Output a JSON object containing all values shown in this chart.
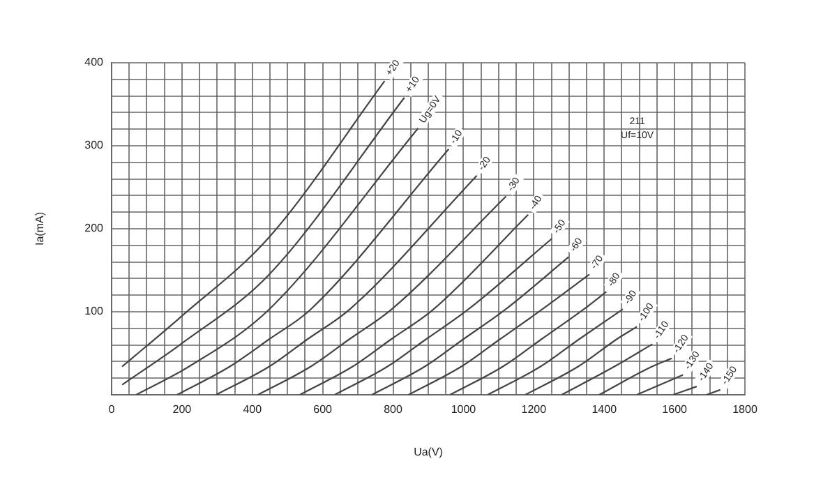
{
  "chart_data": {
    "type": "line",
    "xlabel": "Ua(V)",
    "ylabel": "Ia(mA)",
    "annotations": [
      "211",
      "Uf=10V"
    ],
    "xlim": [
      0,
      1800
    ],
    "ylim": [
      0,
      400
    ],
    "xticks": [
      0,
      {
        "value": 50,
        "label": null
      },
      {
        "value": 100,
        "label": null
      },
      {
        "value": 150,
        "label": null
      },
      200,
      {
        "value": 250,
        "label": null
      },
      {
        "value": 300,
        "label": null
      },
      {
        "value": 350,
        "label": null
      },
      400,
      {
        "value": 450,
        "label": null
      },
      {
        "value": 500,
        "label": null
      },
      {
        "value": 550,
        "label": null
      },
      600,
      {
        "value": 650,
        "label": null
      },
      {
        "value": 700,
        "label": null
      },
      {
        "value": 750,
        "label": null
      },
      800,
      {
        "value": 850,
        "label": null
      },
      {
        "value": 900,
        "label": null
      },
      {
        "value": 950,
        "label": null
      },
      1000,
      {
        "value": 1050,
        "label": null
      },
      {
        "value": 1100,
        "label": null
      },
      {
        "value": 1150,
        "label": null
      },
      1200,
      {
        "value": 1250,
        "label": null
      },
      {
        "value": 1300,
        "label": null
      },
      {
        "value": 1350,
        "label": null
      },
      1400,
      {
        "value": 1450,
        "label": null
      },
      {
        "value": 1500,
        "label": null
      },
      {
        "value": 1550,
        "label": null
      },
      1600,
      {
        "value": 1650,
        "label": null
      },
      {
        "value": 1700,
        "label": null
      },
      {
        "value": 1750,
        "label": null
      },
      1800
    ],
    "yticks": [
      {
        "value": 0,
        "label": null
      },
      {
        "value": 20,
        "label": null
      },
      {
        "value": 40,
        "label": null
      },
      {
        "value": 60,
        "label": null
      },
      {
        "value": 80,
        "label": null
      },
      100,
      {
        "value": 120,
        "label": null
      },
      {
        "value": 140,
        "label": null
      },
      {
        "value": 160,
        "label": null
      },
      {
        "value": 180,
        "label": null
      },
      200,
      {
        "value": 220,
        "label": null
      },
      {
        "value": 240,
        "label": null
      },
      {
        "value": 260,
        "label": null
      },
      {
        "value": 280,
        "label": null
      },
      300,
      {
        "value": 320,
        "label": null
      },
      {
        "value": 340,
        "label": null
      },
      {
        "value": 360,
        "label": null
      },
      {
        "value": 380,
        "label": null
      },
      400
    ],
    "grid": true,
    "legend": false,
    "marker": "none",
    "line_style": "solid",
    "series": [
      {
        "name": "+20",
        "color": "#444444",
        "x": [
          30,
          200,
          448,
          776
        ],
        "values": [
          34,
          95,
          190,
          378
        ]
      },
      {
        "name": "+10",
        "color": "#444444",
        "x": [
          30,
          200,
          448,
          832
        ],
        "values": [
          12,
          62,
          145,
          358
        ]
      },
      {
        "name": "Ug=0V",
        "color": "#444444",
        "x": [
          70,
          220,
          448,
          871
        ],
        "values": [
          0,
          34,
          103,
          321
        ]
      },
      {
        "name": "-10",
        "color": "#444444",
        "x": [
          186,
          336,
          448,
          566,
          958
        ],
        "values": [
          0,
          34,
          67,
          103,
          296
        ]
      },
      {
        "name": "-20",
        "color": "#444444",
        "x": [
          297,
          448,
          557,
          677,
          1038
        ],
        "values": [
          0,
          34,
          67,
          103,
          264
        ]
      },
      {
        "name": "-30",
        "color": "#444444",
        "x": [
          416,
          566,
          676,
          796,
          1121
        ],
        "values": [
          0,
          34,
          67,
          103,
          239
        ]
      },
      {
        "name": "-40",
        "color": "#444444",
        "x": [
          535,
          685,
          795,
          915,
          1184
        ],
        "values": [
          0,
          34,
          67,
          103,
          217
        ]
      },
      {
        "name": "-50",
        "color": "#444444",
        "x": [
          634,
          784,
          894,
          1014,
          1251
        ],
        "values": [
          0,
          34,
          67,
          103,
          188
        ]
      },
      {
        "name": "-60",
        "color": "#444444",
        "x": [
          740,
          890,
          1000,
          1120,
          1299
        ],
        "values": [
          0,
          34,
          67,
          103,
          166
        ]
      },
      {
        "name": "-70",
        "color": "#444444",
        "x": [
          844,
          994,
          1104,
          1224,
          1358
        ],
        "values": [
          0,
          34,
          67,
          103,
          145
        ]
      },
      {
        "name": "-80",
        "color": "#444444",
        "x": [
          962,
          1112,
          1222,
          1342,
          1406
        ],
        "values": [
          0,
          34,
          67,
          103,
          124
        ]
      },
      {
        "name": "-90",
        "color": "#444444",
        "x": [
          1069,
          1219,
          1329,
          1453
        ],
        "values": [
          0,
          34,
          67,
          103
        ]
      },
      {
        "name": "-100",
        "color": "#444444",
        "x": [
          1176,
          1326,
          1436,
          1493
        ],
        "values": [
          0,
          34,
          67,
          82
        ]
      },
      {
        "name": "-110",
        "color": "#444444",
        "x": [
          1279,
          1429,
          1537
        ],
        "values": [
          0,
          34,
          61
        ]
      },
      {
        "name": "-120",
        "color": "#444444",
        "x": [
          1386,
          1536,
          1592
        ],
        "values": [
          0,
          34,
          44
        ]
      },
      {
        "name": "-130",
        "color": "#444444",
        "x": [
          1493,
          1624
        ],
        "values": [
          0,
          24
        ]
      },
      {
        "name": "-140",
        "color": "#444444",
        "x": [
          1596,
          1663
        ],
        "values": [
          0,
          10
        ]
      },
      {
        "name": "-150",
        "color": "#444444",
        "x": [
          1691,
          1730
        ],
        "values": [
          0,
          6
        ]
      }
    ]
  }
}
